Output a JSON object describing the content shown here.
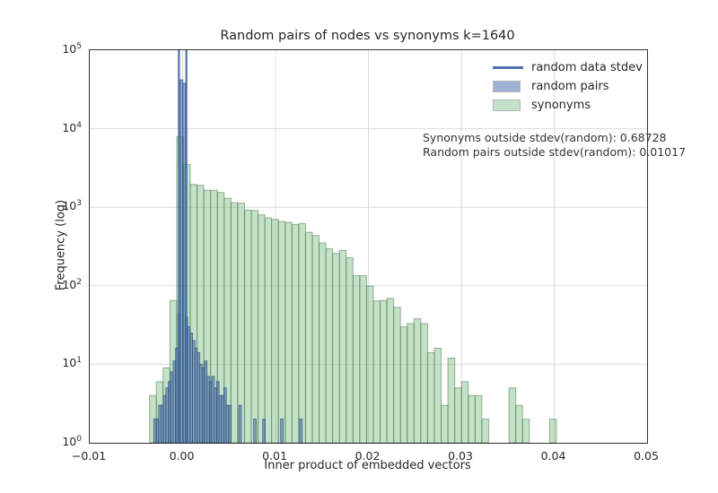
{
  "figure": {
    "title": "Random pairs of nodes vs synonyms k=1640",
    "xlabel": "Inner product of embedded vectors",
    "ylabel": "Frequency (log)"
  },
  "annotation": {
    "line1": "Synonyms outside stdev(random): 0.68728",
    "line2": "Random pairs outside stdev(random): 0.01017"
  },
  "legend": {
    "items": [
      {
        "label": "random data stdev",
        "swatch": "line"
      },
      {
        "label": "random pairs",
        "swatch": "patch-blue"
      },
      {
        "label": "synonyms",
        "swatch": "patch-green"
      }
    ]
  },
  "colors": {
    "stdev_line": "#4c72b0",
    "random_pairs_fill": "rgba(76,114,176,0.55)",
    "random_pairs_edge": "rgba(50,80,130,0.75)",
    "synonyms_fill": "rgba(96,180,110,0.38)",
    "synonyms_edge": "rgba(80,120,80,0.55)",
    "grid": "#dcdcdc",
    "spine": "#333333",
    "text": "#262626"
  },
  "chart_data": {
    "type": "histogram",
    "title": "Random pairs of nodes vs synonyms k=1640",
    "xlabel": "Inner product of embedded vectors",
    "ylabel": "Frequency (log)",
    "xlim": [
      -0.01,
      0.05
    ],
    "ylim": [
      1,
      100000
    ],
    "y_scale": "log",
    "grid": true,
    "legend_position": "upper right",
    "x_ticks": [
      {
        "value": -0.01,
        "label": "−0.01"
      },
      {
        "value": 0.0,
        "label": "0.00"
      },
      {
        "value": 0.01,
        "label": "0.01"
      },
      {
        "value": 0.02,
        "label": "0.02"
      },
      {
        "value": 0.03,
        "label": "0.03"
      },
      {
        "value": 0.04,
        "label": "0.04"
      },
      {
        "value": 0.05,
        "label": "0.05"
      }
    ],
    "y_tick_exponents": [
      0,
      1,
      2,
      3,
      4,
      5
    ],
    "stdev_lines_x": [
      -0.0004,
      0.0004
    ],
    "stats": {
      "synonyms_outside_stdev": 0.68728,
      "random_pairs_outside_stdev": 0.01017
    },
    "series": [
      {
        "name": "synonyms",
        "bin_start": -0.00356,
        "bin_width": 0.00073,
        "counts": [
          4,
          6,
          9,
          65,
          7900,
          3500,
          1950,
          1900,
          1650,
          1640,
          1540,
          1300,
          1140,
          1130,
          920,
          910,
          800,
          730,
          700,
          660,
          640,
          600,
          620,
          480,
          437,
          351,
          295,
          258,
          282,
          227,
          134,
          134,
          99,
          64,
          65,
          69,
          53,
          30,
          33,
          38,
          33,
          14,
          16,
          3,
          12,
          5,
          6,
          4,
          4,
          2,
          0,
          0,
          0,
          5,
          3,
          2,
          0,
          0,
          0,
          2
        ]
      },
      {
        "name": "random pairs",
        "bin_width": 0.00026,
        "bins": [
          [
            -0.0031,
            2
          ],
          [
            -0.00284,
            2
          ],
          [
            -0.00258,
            3
          ],
          [
            -0.00232,
            3
          ],
          [
            -0.00206,
            4
          ],
          [
            -0.0018,
            5
          ],
          [
            -0.00154,
            6
          ],
          [
            -0.00128,
            8
          ],
          [
            -0.00102,
            11
          ],
          [
            -0.00076,
            16
          ],
          [
            -0.0005,
            45
          ],
          [
            -0.00024,
            42000
          ],
          [
            2e-05,
            38000
          ],
          [
            0.00028,
            40
          ],
          [
            0.00054,
            30
          ],
          [
            0.0008,
            25
          ],
          [
            0.00106,
            20
          ],
          [
            0.00132,
            16
          ],
          [
            0.00158,
            14
          ],
          [
            0.00184,
            10
          ],
          [
            0.0021,
            9
          ],
          [
            0.00236,
            11
          ],
          [
            0.00262,
            7
          ],
          [
            0.00288,
            6
          ],
          [
            0.00314,
            7
          ],
          [
            0.0034,
            5
          ],
          [
            0.00366,
            6
          ],
          [
            0.00392,
            4
          ],
          [
            0.00418,
            4
          ],
          [
            0.00444,
            5
          ],
          [
            0.0047,
            3
          ],
          [
            0.00496,
            3
          ],
          [
            0.00606,
            3
          ],
          [
            0.00765,
            2
          ],
          [
            0.00862,
            2
          ],
          [
            0.01055,
            2
          ],
          [
            0.01261,
            2
          ]
        ]
      }
    ]
  }
}
